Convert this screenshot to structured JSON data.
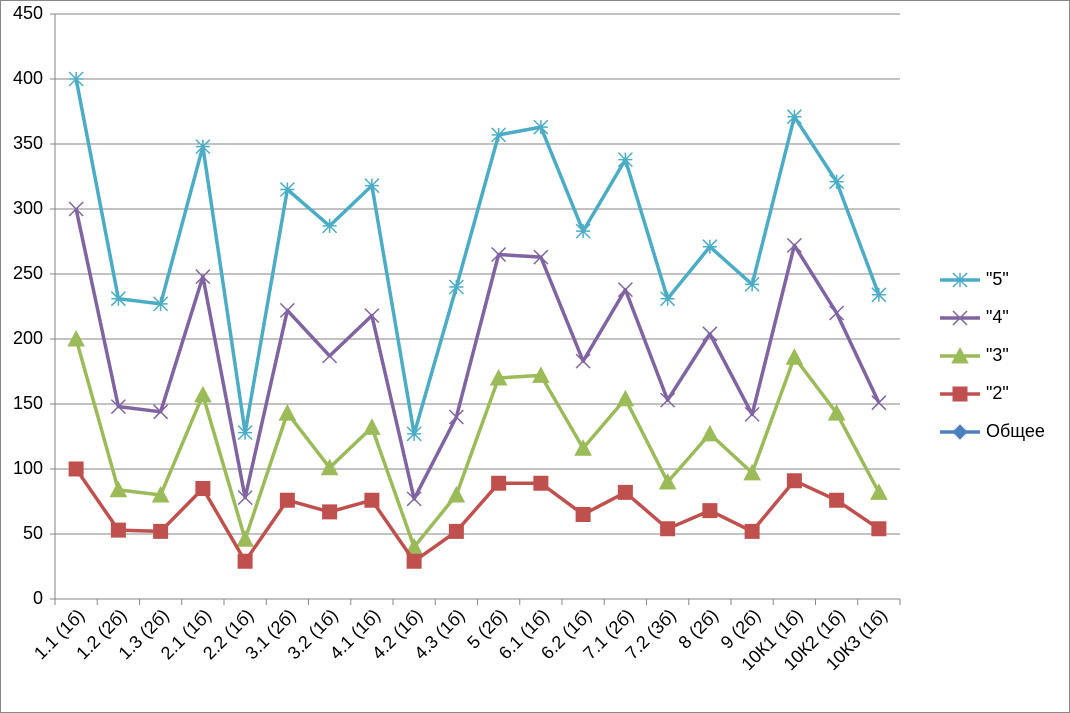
{
  "chart_data": {
    "type": "line",
    "categories": [
      "1.1 (1б)",
      "1.2 (2б)",
      "1.3 (2б)",
      "2.1 (1б)",
      "2.2 (1б)",
      "3.1 (2б)",
      "3.2 (1б)",
      "4.1 (1б)",
      "4.2 (1б)",
      "4.3 (1б)",
      "5 (2б)",
      "6.1 (1б)",
      "6.2 (1б)",
      "7.1 (2б)",
      "7.2 (3б)",
      "8 (2б)",
      "9 (2б)",
      "10К1 (1б)",
      "10К2 (1б)",
      "10К3 (1б)"
    ],
    "series": [
      {
        "name": "\"5\"",
        "color": "#4bacc6",
        "marker": "star",
        "values": [
          400,
          231,
          227,
          348,
          128,
          315,
          287,
          318,
          127,
          240,
          357,
          363,
          283,
          338,
          231,
          271,
          242,
          371,
          321,
          234
        ]
      },
      {
        "name": "\"4\"",
        "color": "#8064a2",
        "marker": "x",
        "values": [
          300,
          148,
          144,
          248,
          78,
          222,
          187,
          218,
          77,
          140,
          265,
          263,
          183,
          238,
          153,
          204,
          142,
          272,
          220,
          151
        ]
      },
      {
        "name": "\"3\"",
        "color": "#9bbb59",
        "marker": "triangle",
        "values": [
          200,
          84,
          80,
          157,
          46,
          143,
          101,
          132,
          40,
          80,
          170,
          172,
          116,
          154,
          90,
          127,
          97,
          186,
          143,
          82
        ]
      },
      {
        "name": "\"2\"",
        "color": "#c0504d",
        "marker": "square",
        "values": [
          100,
          53,
          52,
          85,
          29,
          76,
          67,
          76,
          29,
          52,
          89,
          89,
          65,
          82,
          54,
          68,
          52,
          91,
          76,
          54
        ]
      },
      {
        "name": "Общее",
        "color": "#4f81bd",
        "marker": "diamond",
        "values": [
          null,
          null,
          null,
          null,
          null,
          null,
          null,
          null,
          null,
          null,
          null,
          null,
          null,
          null,
          null,
          null,
          null,
          null,
          null,
          null
        ]
      }
    ],
    "ylim": [
      0,
      450
    ],
    "yticks": [
      0,
      50,
      100,
      150,
      200,
      250,
      300,
      350,
      400,
      450
    ],
    "grid": true,
    "legend": "right"
  }
}
